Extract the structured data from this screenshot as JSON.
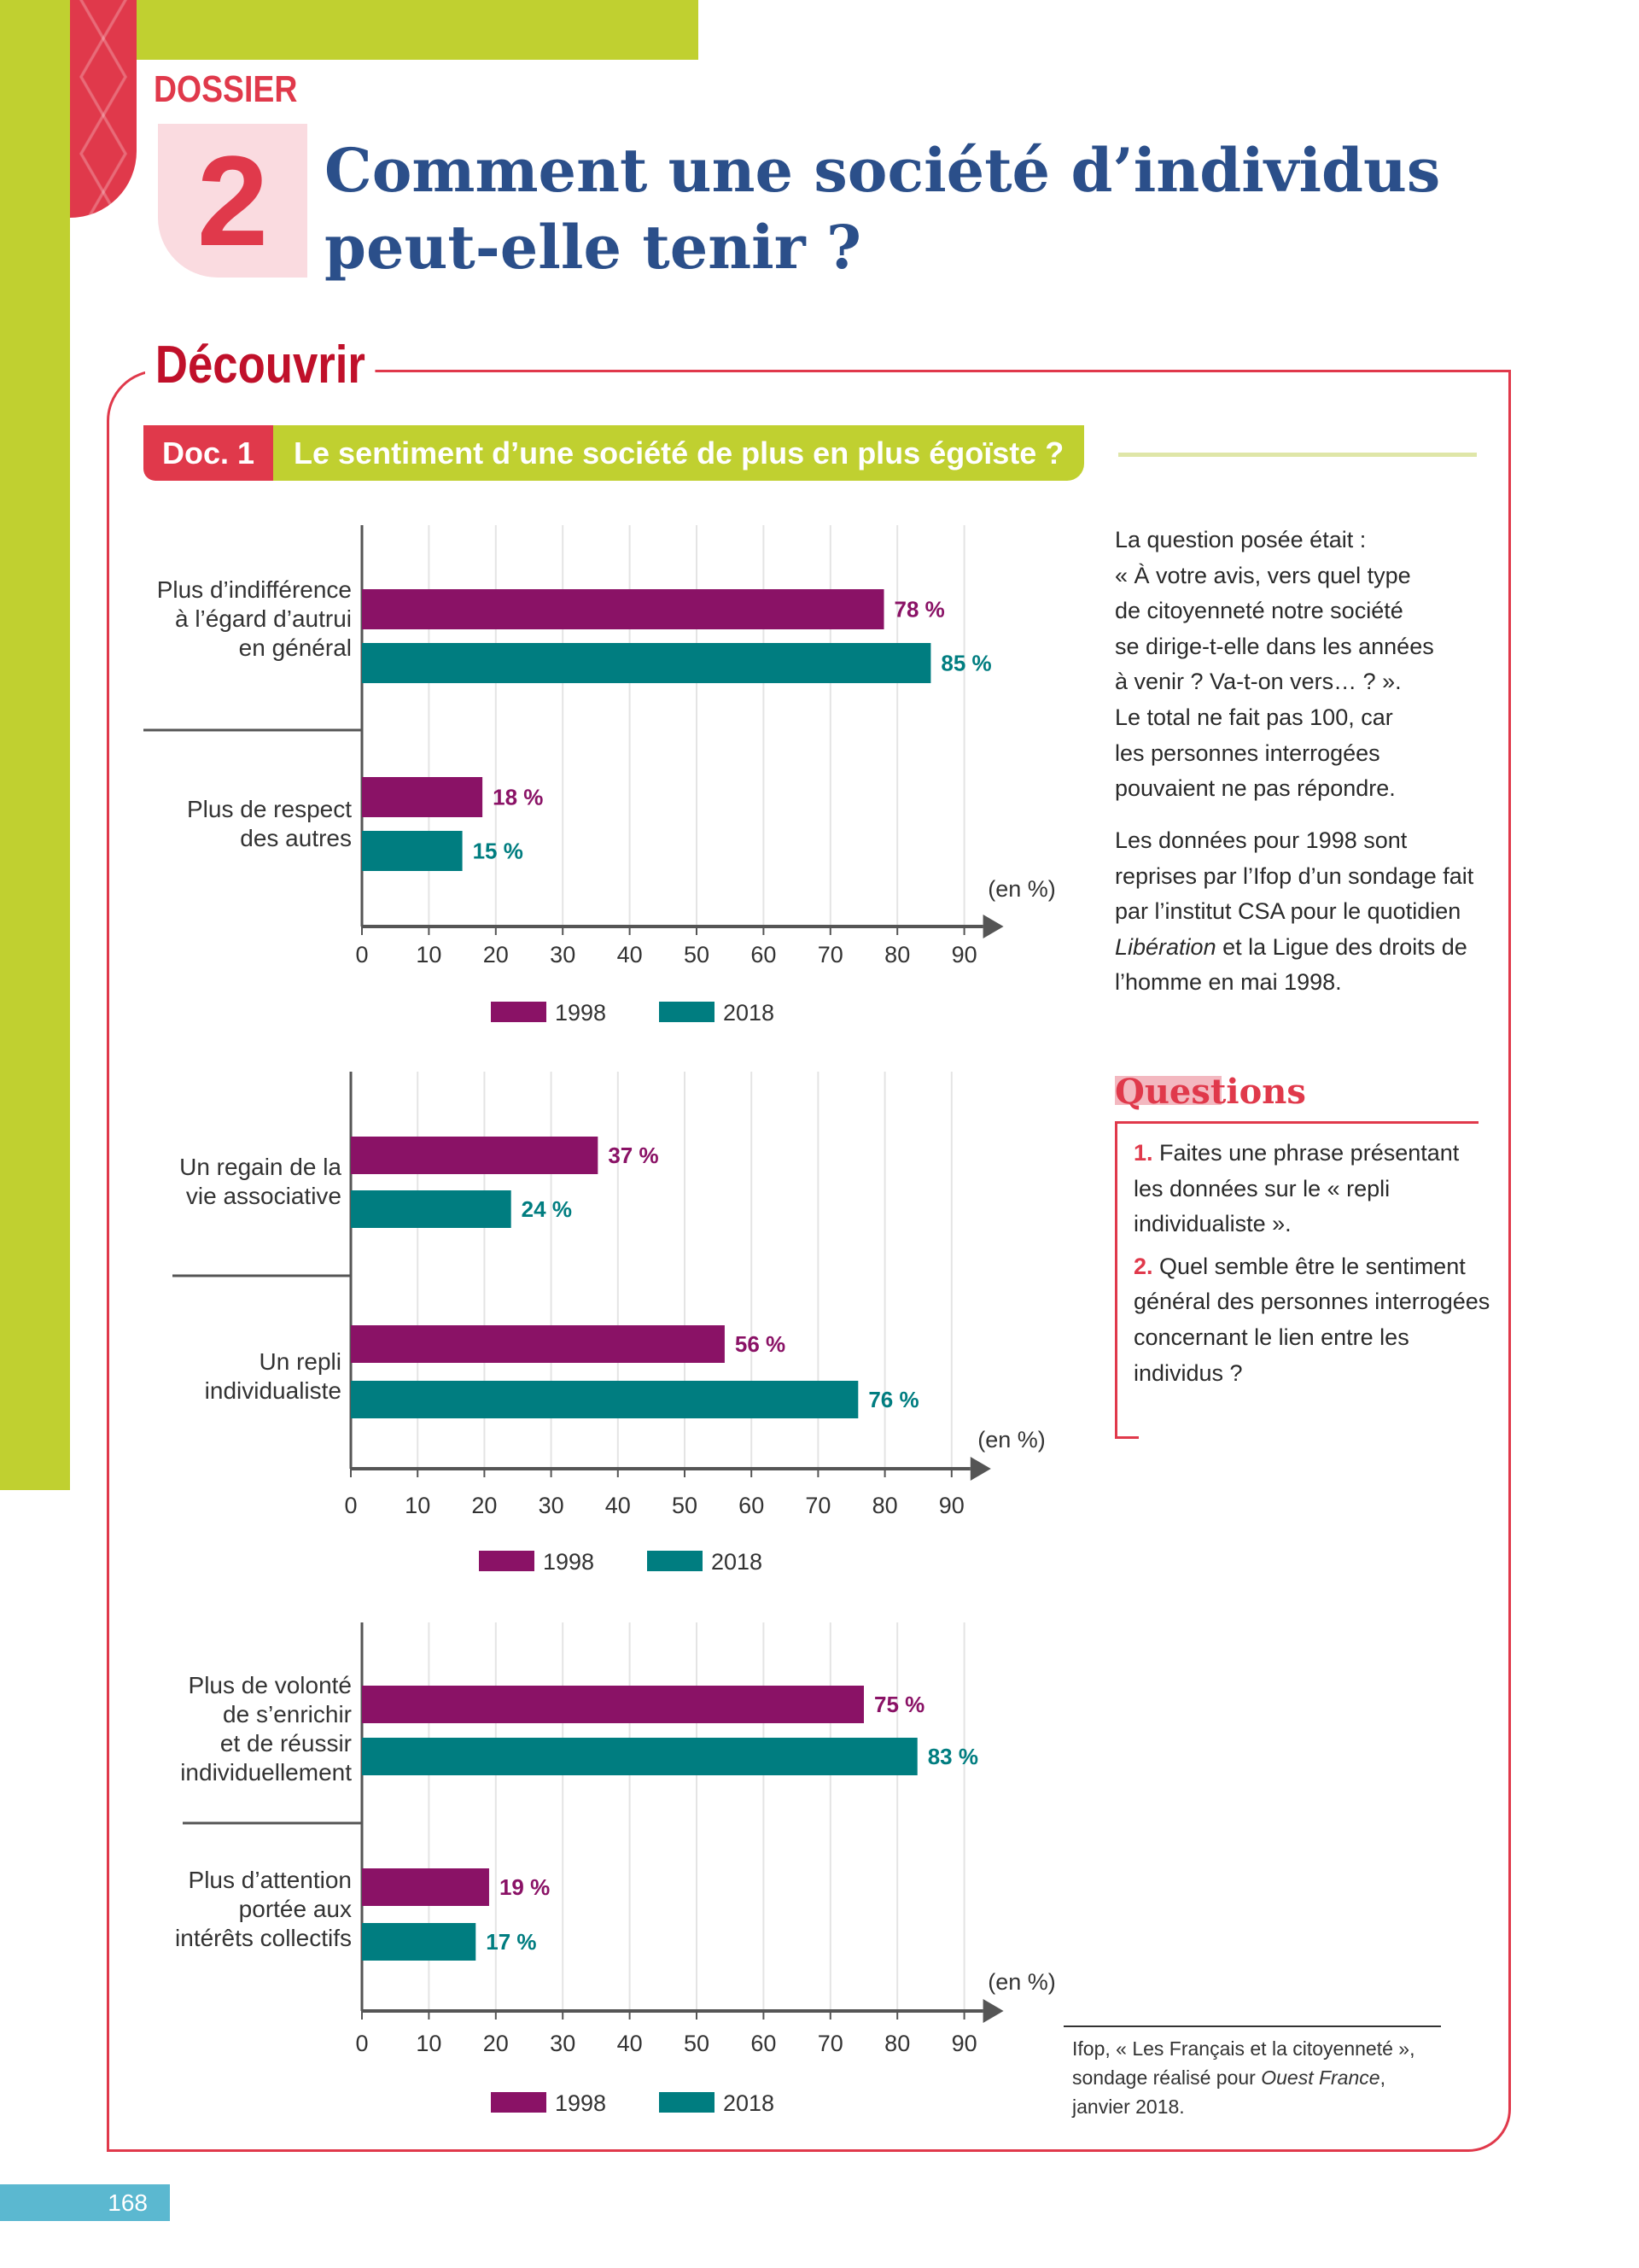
{
  "header": {
    "dossier_label": "DOSSIER",
    "dossier_number": "2",
    "title_line1": "Comment une société d’individus",
    "title_line2": "peut-elle tenir ?"
  },
  "section": {
    "label": "Découvrir",
    "doc_number": "Doc. 1",
    "doc_title": "Le sentiment d’une société de plus en plus égoïste ?"
  },
  "colors": {
    "series_1998": "#8a1266",
    "series_2018": "#007d80",
    "accent_red": "#e0394b",
    "accent_green": "#c0d030",
    "title_blue": "#2b4f8a"
  },
  "chart_data": [
    {
      "type": "bar",
      "orientation": "horizontal",
      "categories": [
        [
          "Plus d’indifférence",
          "à l’égard d’autrui",
          "en général"
        ],
        [
          "Plus de respect",
          "des autres"
        ]
      ],
      "series": [
        {
          "name": "1998",
          "values": [
            78,
            18
          ],
          "labels": [
            "78 %",
            "18 %"
          ]
        },
        {
          "name": "2018",
          "values": [
            85,
            15
          ],
          "labels": [
            "85 %",
            "15 %"
          ]
        }
      ],
      "xlabel": "(en %)",
      "xticks": [
        "0",
        "10",
        "20",
        "30",
        "40",
        "50",
        "60",
        "70",
        "80",
        "90"
      ],
      "xlim": [
        0,
        90
      ],
      "grid": true,
      "legend": "bottom"
    },
    {
      "type": "bar",
      "orientation": "horizontal",
      "categories": [
        [
          "Un regain de la",
          "vie associative"
        ],
        [
          "Un repli",
          "individualiste"
        ]
      ],
      "series": [
        {
          "name": "1998",
          "values": [
            37,
            56
          ],
          "labels": [
            "37 %",
            "56 %"
          ]
        },
        {
          "name": "2018",
          "values": [
            24,
            76
          ],
          "labels": [
            "24 %",
            "76 %"
          ]
        }
      ],
      "xlabel": "(en %)",
      "xticks": [
        "0",
        "10",
        "20",
        "30",
        "40",
        "50",
        "60",
        "70",
        "80",
        "90"
      ],
      "xlim": [
        0,
        90
      ],
      "grid": true,
      "legend": "bottom"
    },
    {
      "type": "bar",
      "orientation": "horizontal",
      "categories": [
        [
          "Plus de volonté",
          "de s’enrichir",
          "et de réussir",
          "individuellement"
        ],
        [
          "Plus d’attention",
          "portée aux",
          "intérêts collectifs"
        ]
      ],
      "series": [
        {
          "name": "1998",
          "values": [
            75,
            19
          ],
          "labels": [
            "75 %",
            "19 %"
          ]
        },
        {
          "name": "2018",
          "values": [
            83,
            17
          ],
          "labels": [
            "83 %",
            "17 %"
          ]
        }
      ],
      "xlabel": "(en %)",
      "xticks": [
        "0",
        "10",
        "20",
        "30",
        "40",
        "50",
        "60",
        "70",
        "80",
        "90"
      ],
      "xlim": [
        0,
        90
      ],
      "grid": true,
      "legend": "bottom"
    }
  ],
  "side": {
    "para1": [
      "La question posée était :",
      "« À votre avis, vers quel type",
      "de citoyenneté notre société",
      "se dirige-t-elle dans les années",
      "à venir ? Va-t-on vers… ? ».",
      "Le total ne fait pas 100, car",
      "les personnes interrogées",
      "pouvaient ne pas répondre."
    ],
    "para2_before": "Les données pour 1998 sont reprises par l’Ifop d’un sondage fait par l’institut CSA pour le quotidien ",
    "para2_italic": "Libération",
    "para2_after": " et la Ligue des droits de l’homme en mai 1998."
  },
  "questions": {
    "heading": "Questions",
    "items": [
      {
        "num": "1.",
        "text": "Faites une phrase présentant les données sur le « repli individualiste »."
      },
      {
        "num": "2.",
        "text": "Quel semble être le sentiment général des personnes interrogées concernant le lien entre les individus ?"
      }
    ]
  },
  "source": {
    "before": "Ifop, « Les Français et la citoyenneté », sondage réalisé pour ",
    "italic": "Ouest France",
    "after": ", janvier 2018."
  },
  "page_number": "168"
}
